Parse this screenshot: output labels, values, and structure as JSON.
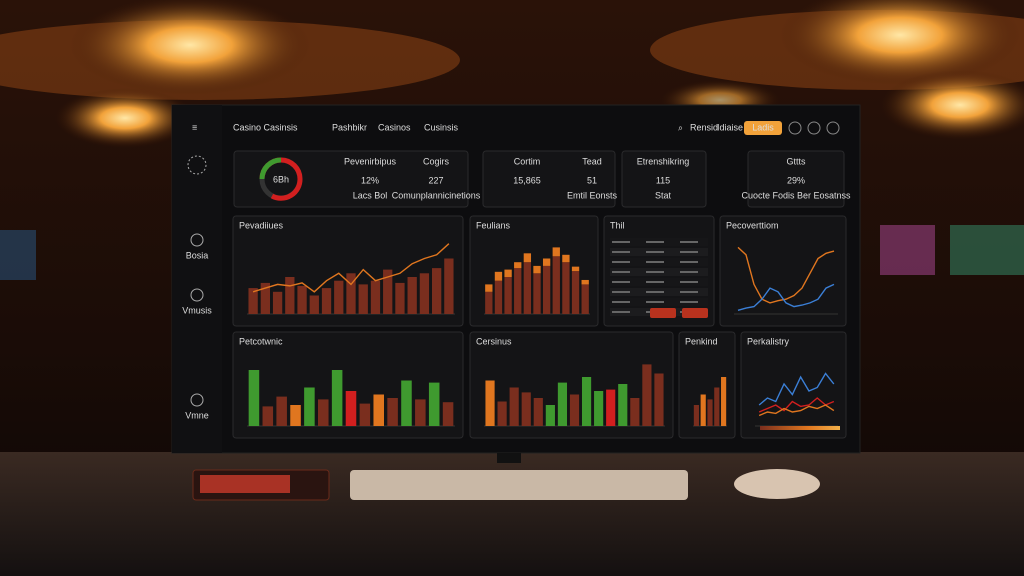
{
  "header": {
    "title": "Casino Casinsis",
    "nav": [
      "Pashbikr",
      "Casinos",
      "Cusinsis"
    ],
    "search": "Rensid",
    "account": "Idiaise",
    "button": "Ladis"
  },
  "sidebar": [
    "Bosia",
    "Vmusis",
    "Vmne"
  ],
  "gauge": {
    "label": "6Bh"
  },
  "kpis": [
    {
      "label": "Pevenirbipus",
      "value": "12%",
      "sub": "Lacs Bol"
    },
    {
      "label": "Cogirs",
      "value": "227",
      "sub": "Comunplannicinetions"
    },
    {
      "label": "Cortim",
      "value": "15,865"
    },
    {
      "label": "Tead",
      "value": "51",
      "sub": "Emtil Eonsts"
    },
    {
      "label": "Etrenshikring",
      "value": "115",
      "sub": "Stat"
    },
    {
      "label": "Gttts",
      "value": "29%",
      "sub": "Cuocte Fodis Ber Eosatnss"
    }
  ],
  "panels": [
    {
      "title": "Pevadiiues",
      "kind": "barline",
      "bars": [
        35,
        42,
        30,
        50,
        38,
        25,
        35,
        45,
        55,
        40,
        45,
        60,
        42,
        50,
        55,
        62,
        75
      ],
      "line": [
        30,
        35,
        40,
        38,
        42,
        30,
        45,
        55,
        40,
        60,
        45,
        50,
        55,
        68,
        75,
        80,
        95
      ]
    },
    {
      "title": "Feulians",
      "kind": "stack",
      "bars": [
        30,
        45,
        50,
        62,
        70,
        55,
        65,
        78,
        70,
        58,
        40
      ],
      "tops": [
        10,
        12,
        10,
        8,
        12,
        10,
        10,
        12,
        10,
        6,
        6
      ]
    },
    {
      "title": "Thil",
      "kind": "table"
    },
    {
      "title": "Pecoverttiom",
      "kind": "lines",
      "series": [
        {
          "color": "#e0761f",
          "values": [
            90,
            80,
            40,
            20,
            15,
            18,
            20,
            25,
            35,
            55,
            75,
            82,
            85
          ]
        },
        {
          "color": "#3b7fd6",
          "values": [
            5,
            8,
            10,
            20,
            35,
            30,
            15,
            10,
            12,
            15,
            20,
            35,
            40
          ]
        }
      ]
    },
    {
      "title": "Petcotwnic",
      "kind": "colorbars",
      "bars": [
        80,
        28,
        42,
        30,
        55,
        38,
        80,
        50,
        32,
        45,
        40,
        65,
        38,
        62,
        34
      ],
      "colors": [
        "#3f9a2f",
        "#7a2e1e",
        "#7a2e1e",
        "#e0761f",
        "#3f9a2f",
        "#7a2e1e",
        "#3f9a2f",
        "#d21f1f",
        "#7a2e1e",
        "#e0761f",
        "#7a2e1e",
        "#3f9a2f",
        "#7a2e1e",
        "#3f9a2f",
        "#7a2e1e"
      ]
    },
    {
      "title": "Cersinus",
      "kind": "colorbars",
      "bars": [
        65,
        35,
        55,
        48,
        40,
        30,
        62,
        45,
        70,
        50,
        52,
        60,
        40,
        88,
        75
      ],
      "colors": [
        "#e0761f",
        "#7a2e1e",
        "#7a2e1e",
        "#7a2e1e",
        "#7a2e1e",
        "#3f9a2f",
        "#3f9a2f",
        "#7a2e1e",
        "#3f9a2f",
        "#3f9a2f",
        "#d21f1f",
        "#3f9a2f",
        "#7a2e1e",
        "#7a2e1e",
        "#7a2e1e"
      ]
    },
    {
      "title": "Penkind",
      "kind": "colorbars",
      "bars": [
        30,
        45,
        38,
        55,
        70
      ],
      "colors": [
        "#7a2e1e",
        "#e0761f",
        "#7a2e1e",
        "#7a2e1e",
        "#e0761f"
      ]
    },
    {
      "title": "Perkalistry",
      "kind": "lines",
      "series": [
        {
          "color": "#3b7fd6",
          "values": [
            30,
            40,
            35,
            60,
            45,
            70,
            50,
            55,
            75,
            60
          ]
        },
        {
          "color": "#d21f1f",
          "values": [
            20,
            25,
            30,
            22,
            35,
            28,
            30,
            40,
            30,
            35
          ]
        },
        {
          "color": "#e0761f",
          "values": [
            15,
            20,
            18,
            25,
            20,
            22,
            28,
            25,
            30,
            22
          ]
        }
      ]
    }
  ]
}
